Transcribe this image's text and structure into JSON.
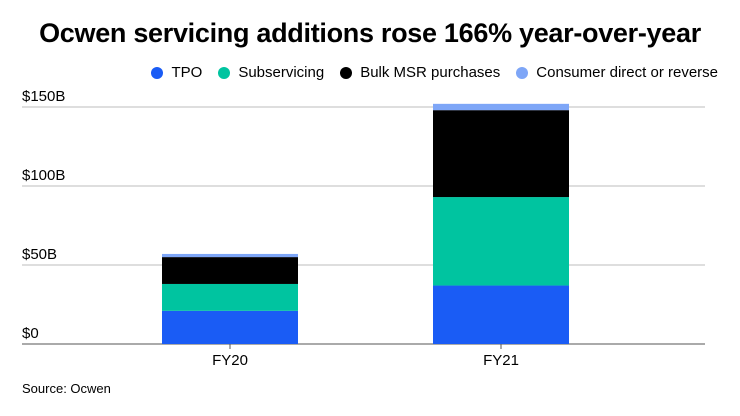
{
  "chart_data": {
    "type": "bar",
    "stacked": true,
    "title": "Ocwen servicing additions rose 166% year-over-year",
    "xlabel": "",
    "ylabel": "",
    "categories": [
      "FY20",
      "FY21"
    ],
    "series": [
      {
        "name": "TPO",
        "color": "#1a5cf5",
        "values": [
          21,
          37
        ]
      },
      {
        "name": "Subservicing",
        "color": "#00c4a0",
        "values": [
          17,
          56
        ]
      },
      {
        "name": "Bulk MSR purchases",
        "color": "#000000",
        "values": [
          17,
          55
        ]
      },
      {
        "name": "Consumer direct or reverse",
        "color": "#7ea6f7",
        "values": [
          2,
          4
        ]
      }
    ],
    "yticks": [
      {
        "value": 0,
        "label": "$0"
      },
      {
        "value": 50,
        "label": "$50B"
      },
      {
        "value": 100,
        "label": "$100B"
      },
      {
        "value": 150,
        "label": "$150B"
      }
    ],
    "ylim": [
      0,
      150
    ],
    "grid": true,
    "legend_position": "top-right",
    "source": "Source: Ocwen"
  }
}
